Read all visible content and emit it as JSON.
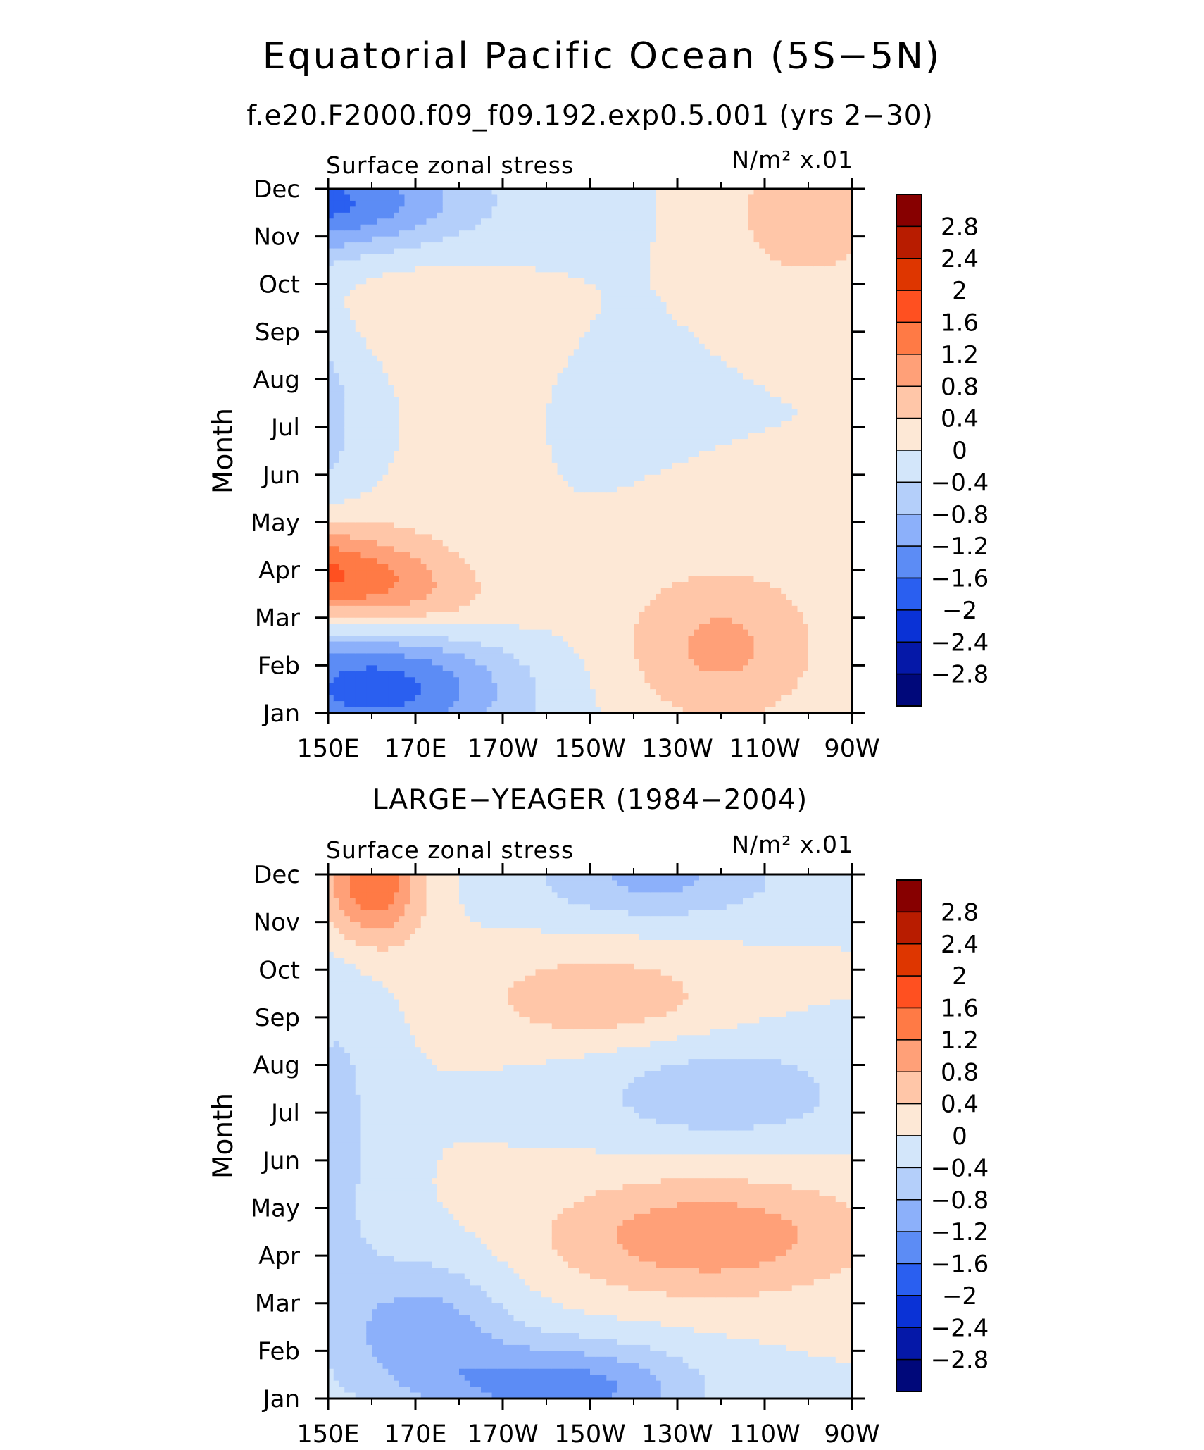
{
  "title": "Equatorial Pacific Ocean (5S−5N)",
  "colorbar_levels": [
    "2.8",
    "2.4",
    "2",
    "1.6",
    "1.2",
    "0.8",
    "0.4",
    "0",
    "−0.4",
    "−0.8",
    "−1.2",
    "−1.6",
    "−2",
    "−2.4",
    "−2.8"
  ],
  "colors": [
    "#870000",
    "#b81c00",
    "#de3600",
    "#ff5020",
    "#ff7a45",
    "#ffa078",
    "#ffc6a8",
    "#fde8d6",
    "#d3e6fa",
    "#b4cffa",
    "#8cb0fa",
    "#5c8cf5",
    "#2a5ff0",
    "#0a32d6",
    "#0518a8",
    "#00087a"
  ],
  "chart_data": [
    {
      "type": "heatmap",
      "title": "f.e20.F2000.f09_f09.192.exp0.5.001 (yrs 2−30)",
      "left_label": "Surface zonal stress",
      "right_label": "N/m² x.01",
      "ylabel": "Month",
      "x_ticks": [
        "150E",
        "170E",
        "170W",
        "150W",
        "130W",
        "110W",
        "90W"
      ],
      "y_ticks": [
        "Jan",
        "Feb",
        "Mar",
        "Apr",
        "May",
        "Jun",
        "Jul",
        "Aug",
        "Sep",
        "Oct",
        "Nov",
        "Dec"
      ],
      "x_range": [
        150,
        270
      ],
      "y_range": [
        1,
        12
      ],
      "z_levels": [
        -2.8,
        -2.4,
        -2,
        -1.6,
        -1.2,
        -0.8,
        -0.4,
        0,
        0.4,
        0.8,
        1.2,
        1.6,
        2,
        2.4,
        2.8
      ],
      "blobs": [
        {
          "lon": 143,
          "mon": 4.0,
          "amp": 1.8,
          "slon": 26,
          "smon": 0.75,
          "rot": -0.018
        },
        {
          "lon": 131,
          "mon": 7.3,
          "amp": -1.7,
          "slon": 30,
          "smon": 1.9
        },
        {
          "lon": 149,
          "mon": 11.7,
          "amp": -1.9,
          "slon": 24,
          "smon": 0.8
        },
        {
          "lon": 161,
          "mon": 1.6,
          "amp": -1.9,
          "slon": 22,
          "smon": 1.0
        },
        {
          "lon": 160,
          "mon": 7.6,
          "amp": 0.9,
          "slon": 20,
          "smon": 2.8
        },
        {
          "lon": 260,
          "mon": 11.5,
          "amp": 0.8,
          "slon": 12,
          "smon": 1.0
        },
        {
          "lon": 240,
          "mon": 2.4,
          "amp": 0.9,
          "slon": 16,
          "smon": 1.2
        }
      ]
    },
    {
      "type": "heatmap",
      "title": "LARGE−YEAGER (1984−2004)",
      "left_label": "Surface zonal stress",
      "right_label": "N/m² x.01",
      "ylabel": "Month",
      "x_ticks": [
        "150E",
        "170E",
        "170W",
        "150W",
        "130W",
        "110W",
        "90W"
      ],
      "y_ticks": [
        "Jan",
        "Feb",
        "Mar",
        "Apr",
        "May",
        "Jun",
        "Jul",
        "Aug",
        "Sep",
        "Oct",
        "Nov",
        "Dec"
      ],
      "x_range": [
        150,
        270
      ],
      "y_range": [
        1,
        12
      ],
      "z_levels": [
        -2.8,
        -2.4,
        -2,
        -1.6,
        -1.2,
        -0.8,
        -0.4,
        0,
        0.4,
        0.8,
        1.2,
        1.6,
        2,
        2.4,
        2.8
      ],
      "blobs": [
        {
          "lon": 160,
          "mon": 11.8,
          "amp": 1.6,
          "slon": 8,
          "smon": 0.9
        },
        {
          "lon": 237,
          "mon": 4.4,
          "amp": 1.1,
          "slon": 26,
          "smon": 0.9
        },
        {
          "lon": 212,
          "mon": 9.4,
          "amp": 0.7,
          "slon": 20,
          "smon": 0.7
        },
        {
          "lon": 205,
          "mon": 1.2,
          "amp": -1.4,
          "slon": 20,
          "smon": 0.7
        },
        {
          "lon": 172,
          "mon": 2.4,
          "amp": -1.0,
          "slon": 14,
          "smon": 1.1
        },
        {
          "lon": 225,
          "mon": 11.9,
          "amp": -0.9,
          "slon": 20,
          "smon": 0.6
        },
        {
          "lon": 240,
          "mon": 7.4,
          "amp": -0.7,
          "slon": 22,
          "smon": 0.8
        },
        {
          "lon": 152,
          "mon": 6.5,
          "amp": -0.5,
          "slon": 8,
          "smon": 3.0
        }
      ]
    }
  ]
}
